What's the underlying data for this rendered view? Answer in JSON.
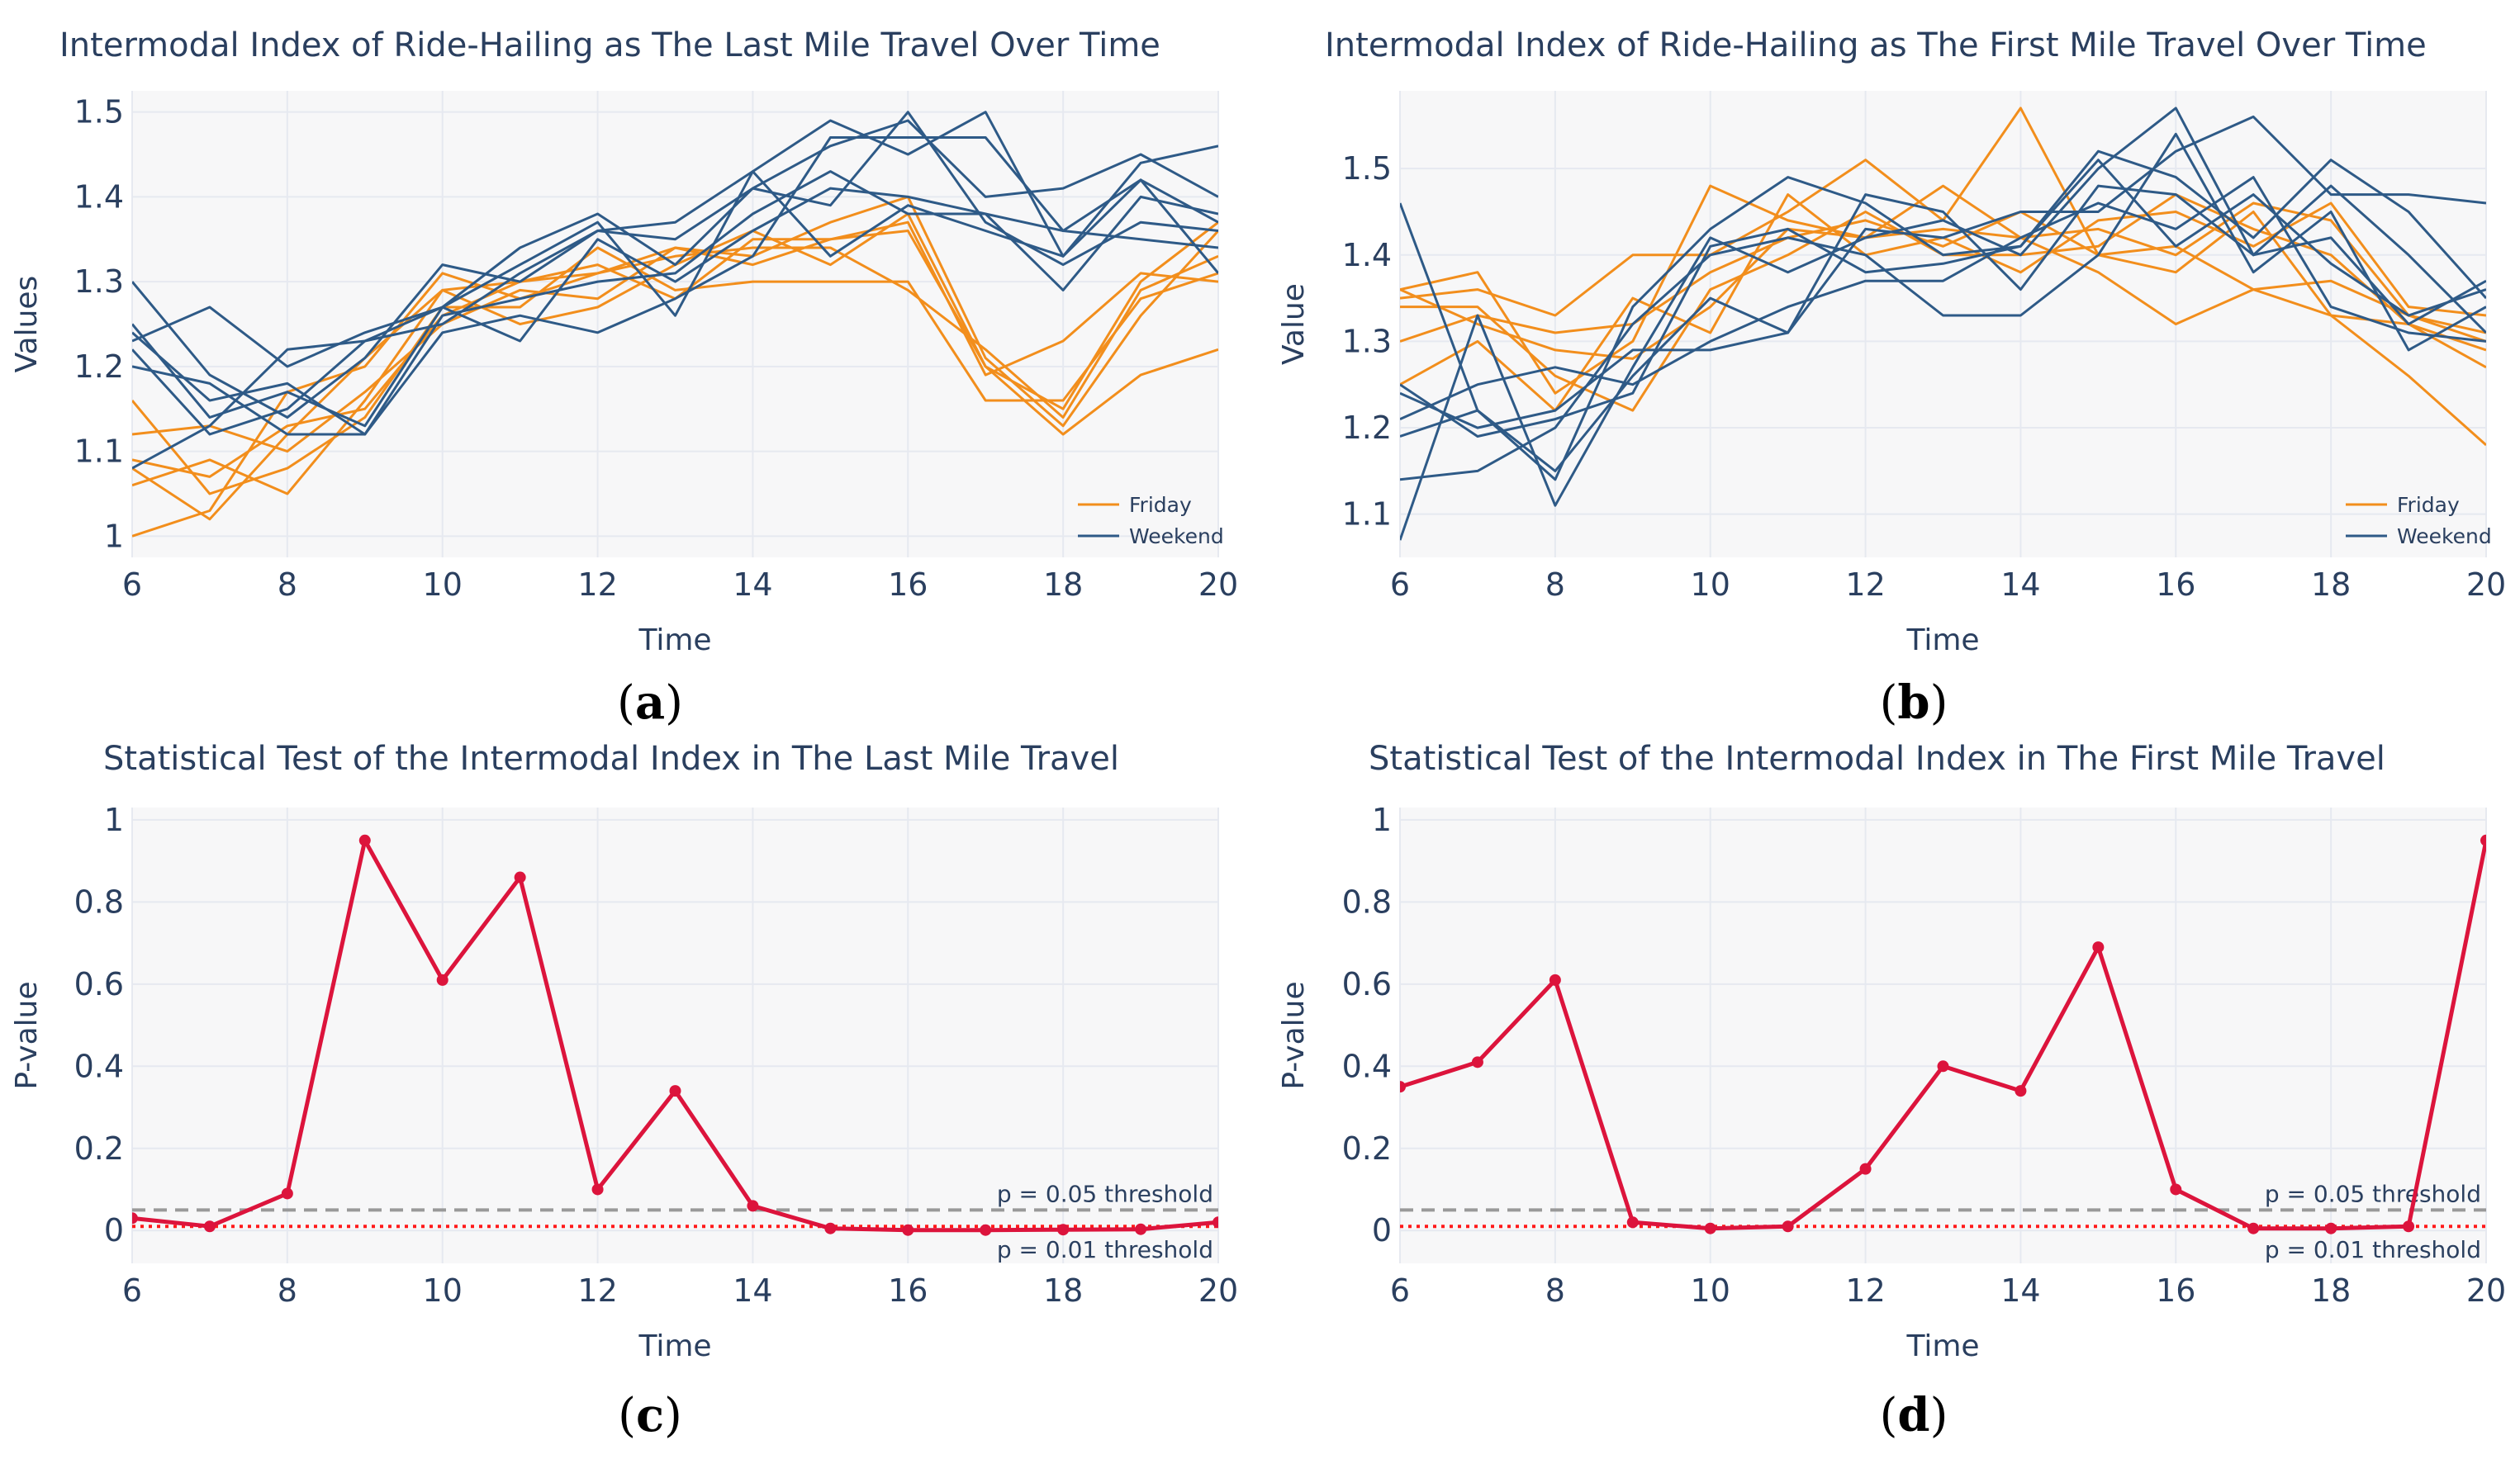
{
  "colors": {
    "friday": "#f28e1c",
    "weekend": "#2e5a87",
    "pvalue": "#dc143c",
    "threshold_05": "#999999",
    "threshold_01": "#ff1a1a",
    "plot_bg": "#f7f7f8",
    "grid": "#e6e9f0",
    "text": "#2a3f5f"
  },
  "chart_data": [
    {
      "type": "line",
      "panel": "a",
      "caption_open": "(",
      "caption_letter": "a",
      "caption_close": ")",
      "title": "Intermodal Index of Ride-Hailing as The Last Mile Travel Over Time",
      "xlabel": "Time",
      "ylabel": "Values",
      "xlim": [
        6,
        20
      ],
      "ylim": [
        0.975,
        1.525
      ],
      "xticks": [
        6,
        8,
        10,
        12,
        14,
        16,
        18,
        20
      ],
      "yticks": [
        1,
        1.1,
        1.2,
        1.3,
        1.4,
        1.5
      ],
      "ytick_labels": [
        "1",
        "1.1",
        "1.2",
        "1.3",
        "1.4",
        "1.5"
      ],
      "x": [
        6,
        7,
        8,
        9,
        10,
        11,
        12,
        13,
        14,
        15,
        16,
        17,
        18,
        19,
        20
      ],
      "legend": [
        {
          "label": "Friday",
          "color_key": "friday"
        },
        {
          "label": "Weekend",
          "color_key": "weekend"
        }
      ],
      "legend_position": "bottom-right",
      "series": [
        {
          "name": "Friday",
          "group": "friday",
          "values": [
            1.0,
            1.03,
            1.17,
            1.2,
            1.31,
            1.28,
            1.31,
            1.34,
            1.33,
            1.37,
            1.4,
            1.21,
            1.13,
            1.26,
            1.36
          ]
        },
        {
          "name": "Friday",
          "group": "friday",
          "values": [
            1.08,
            1.02,
            1.12,
            1.21,
            1.29,
            1.3,
            1.32,
            1.28,
            1.35,
            1.35,
            1.36,
            1.2,
            1.15,
            1.3,
            1.37
          ]
        },
        {
          "name": "Friday",
          "group": "friday",
          "values": [
            1.16,
            1.05,
            1.08,
            1.14,
            1.27,
            1.27,
            1.34,
            1.29,
            1.3,
            1.3,
            1.3,
            1.16,
            1.16,
            1.28,
            1.31
          ]
        },
        {
          "name": "Friday",
          "group": "friday",
          "values": [
            1.12,
            1.13,
            1.1,
            1.17,
            1.25,
            1.29,
            1.28,
            1.34,
            1.32,
            1.35,
            1.37,
            1.19,
            1.23,
            1.31,
            1.3
          ]
        },
        {
          "name": "Friday",
          "group": "friday",
          "values": [
            1.06,
            1.09,
            1.05,
            1.16,
            1.29,
            1.25,
            1.27,
            1.32,
            1.36,
            1.32,
            1.38,
            1.2,
            1.12,
            1.19,
            1.22
          ]
        },
        {
          "name": "Friday",
          "group": "friday",
          "values": [
            1.09,
            1.07,
            1.13,
            1.15,
            1.26,
            1.3,
            1.31,
            1.33,
            1.34,
            1.34,
            1.29,
            1.22,
            1.14,
            1.29,
            1.33
          ]
        },
        {
          "name": "Weekend",
          "group": "weekend",
          "values": [
            1.3,
            1.19,
            1.14,
            1.21,
            1.32,
            1.3,
            1.36,
            1.37,
            1.43,
            1.49,
            1.45,
            1.5,
            1.33,
            1.44,
            1.46
          ]
        },
        {
          "name": "Weekend",
          "group": "weekend",
          "values": [
            1.23,
            1.27,
            1.2,
            1.24,
            1.27,
            1.34,
            1.38,
            1.32,
            1.41,
            1.46,
            1.49,
            1.4,
            1.41,
            1.45,
            1.4
          ]
        },
        {
          "name": "Weekend",
          "group": "weekend",
          "values": [
            1.25,
            1.14,
            1.17,
            1.13,
            1.27,
            1.23,
            1.35,
            1.3,
            1.36,
            1.41,
            1.4,
            1.38,
            1.29,
            1.4,
            1.38
          ]
        },
        {
          "name": "Weekend",
          "group": "weekend",
          "values": [
            1.08,
            1.13,
            1.22,
            1.23,
            1.25,
            1.31,
            1.36,
            1.35,
            1.41,
            1.39,
            1.5,
            1.37,
            1.32,
            1.37,
            1.36
          ]
        },
        {
          "name": "Weekend",
          "group": "weekend",
          "values": [
            1.24,
            1.16,
            1.18,
            1.12,
            1.24,
            1.26,
            1.24,
            1.28,
            1.33,
            1.47,
            1.47,
            1.47,
            1.36,
            1.42,
            1.37
          ]
        },
        {
          "name": "Weekend",
          "group": "weekend",
          "values": [
            1.2,
            1.18,
            1.12,
            1.12,
            1.26,
            1.28,
            1.3,
            1.31,
            1.38,
            1.43,
            1.38,
            1.38,
            1.36,
            1.35,
            1.34
          ]
        },
        {
          "name": "Weekend",
          "group": "weekend",
          "values": [
            1.22,
            1.12,
            1.15,
            1.23,
            1.27,
            1.32,
            1.37,
            1.26,
            1.43,
            1.33,
            1.39,
            1.36,
            1.33,
            1.42,
            1.31
          ]
        }
      ]
    },
    {
      "type": "line",
      "panel": "b",
      "caption_open": "(",
      "caption_letter": "b",
      "caption_close": ")",
      "title": "Intermodal Index of Ride-Hailing as The First Mile Travel Over Time",
      "xlabel": "Time",
      "ylabel": "Value",
      "xlim": [
        6,
        20
      ],
      "ylim": [
        1.05,
        1.59
      ],
      "xticks": [
        6,
        8,
        10,
        12,
        14,
        16,
        18,
        20
      ],
      "yticks": [
        1.1,
        1.2,
        1.3,
        1.4,
        1.5
      ],
      "ytick_labels": [
        "1.1",
        "1.2",
        "1.3",
        "1.4",
        "1.5"
      ],
      "x": [
        6,
        7,
        8,
        9,
        10,
        11,
        12,
        13,
        14,
        15,
        16,
        17,
        18,
        19,
        20
      ],
      "legend": [
        {
          "label": "Friday",
          "color_key": "friday"
        },
        {
          "label": "Weekend",
          "color_key": "weekend"
        }
      ],
      "legend_position": "bottom-right",
      "series": [
        {
          "name": "Friday",
          "group": "friday",
          "values": [
            1.35,
            1.36,
            1.33,
            1.4,
            1.4,
            1.45,
            1.51,
            1.44,
            1.57,
            1.4,
            1.41,
            1.36,
            1.37,
            1.33,
            1.3
          ]
        },
        {
          "name": "Friday",
          "group": "friday",
          "values": [
            1.36,
            1.38,
            1.24,
            1.3,
            1.48,
            1.44,
            1.42,
            1.48,
            1.42,
            1.38,
            1.32,
            1.36,
            1.33,
            1.26,
            1.18
          ]
        },
        {
          "name": "Friday",
          "group": "friday",
          "values": [
            1.3,
            1.33,
            1.31,
            1.32,
            1.38,
            1.42,
            1.44,
            1.41,
            1.45,
            1.4,
            1.38,
            1.45,
            1.33,
            1.32,
            1.27
          ]
        },
        {
          "name": "Friday",
          "group": "friday",
          "values": [
            1.25,
            1.3,
            1.22,
            1.35,
            1.31,
            1.47,
            1.4,
            1.42,
            1.38,
            1.44,
            1.45,
            1.41,
            1.46,
            1.34,
            1.33
          ]
        },
        {
          "name": "Friday",
          "group": "friday",
          "values": [
            1.34,
            1.34,
            1.26,
            1.22,
            1.36,
            1.4,
            1.45,
            1.4,
            1.4,
            1.41,
            1.47,
            1.43,
            1.4,
            1.32,
            1.29
          ]
        },
        {
          "name": "Friday",
          "group": "friday",
          "values": [
            1.36,
            1.32,
            1.29,
            1.28,
            1.34,
            1.43,
            1.42,
            1.43,
            1.42,
            1.43,
            1.4,
            1.46,
            1.44,
            1.33,
            1.31
          ]
        },
        {
          "name": "Weekend",
          "group": "weekend",
          "values": [
            1.46,
            1.22,
            1.14,
            1.34,
            1.43,
            1.49,
            1.46,
            1.4,
            1.41,
            1.52,
            1.49,
            1.42,
            1.51,
            1.45,
            1.35
          ]
        },
        {
          "name": "Weekend",
          "group": "weekend",
          "values": [
            1.07,
            1.33,
            1.11,
            1.27,
            1.42,
            1.38,
            1.42,
            1.44,
            1.4,
            1.5,
            1.57,
            1.4,
            1.42,
            1.32,
            1.37
          ]
        },
        {
          "name": "Weekend",
          "group": "weekend",
          "values": [
            1.24,
            1.2,
            1.22,
            1.29,
            1.29,
            1.31,
            1.43,
            1.42,
            1.45,
            1.45,
            1.52,
            1.56,
            1.47,
            1.47,
            1.46
          ]
        },
        {
          "name": "Weekend",
          "group": "weekend",
          "values": [
            1.14,
            1.15,
            1.2,
            1.32,
            1.4,
            1.42,
            1.4,
            1.33,
            1.33,
            1.4,
            1.54,
            1.38,
            1.45,
            1.29,
            1.34
          ]
        },
        {
          "name": "Weekend",
          "group": "weekend",
          "values": [
            1.21,
            1.25,
            1.27,
            1.25,
            1.3,
            1.34,
            1.37,
            1.37,
            1.42,
            1.46,
            1.43,
            1.49,
            1.34,
            1.31,
            1.3
          ]
        },
        {
          "name": "Weekend",
          "group": "weekend",
          "values": [
            1.19,
            1.22,
            1.15,
            1.26,
            1.35,
            1.31,
            1.47,
            1.45,
            1.36,
            1.48,
            1.47,
            1.4,
            1.48,
            1.4,
            1.31
          ]
        },
        {
          "name": "Weekend",
          "group": "weekend",
          "values": [
            1.25,
            1.19,
            1.21,
            1.24,
            1.41,
            1.43,
            1.38,
            1.39,
            1.41,
            1.51,
            1.41,
            1.47,
            1.39,
            1.33,
            1.36
          ]
        }
      ]
    },
    {
      "type": "line",
      "panel": "c",
      "caption_open": "(",
      "caption_letter": "c",
      "caption_close": ")",
      "title": "Statistical Test of the Intermodal Index in The Last Mile Travel",
      "xlabel": "Time",
      "ylabel": "P-value",
      "xlim": [
        6,
        20
      ],
      "ylim": [
        -0.08,
        1.03
      ],
      "xticks": [
        6,
        8,
        10,
        12,
        14,
        16,
        18,
        20
      ],
      "yticks": [
        0,
        0.2,
        0.4,
        0.6,
        0.8,
        1
      ],
      "ytick_labels": [
        "0",
        "0.2",
        "0.4",
        "0.6",
        "0.8",
        "1"
      ],
      "x": [
        6,
        7,
        8,
        9,
        10,
        11,
        12,
        13,
        14,
        15,
        16,
        17,
        18,
        19,
        20
      ],
      "series": [
        {
          "name": "P-value",
          "group": "pvalue",
          "markers": true,
          "values": [
            0.03,
            0.01,
            0.09,
            0.95,
            0.61,
            0.86,
            0.1,
            0.34,
            0.06,
            0.005,
            0.001,
            0.001,
            0.002,
            0.003,
            0.02
          ]
        }
      ],
      "thresholds": [
        {
          "value": 0.05,
          "label": "p = 0.05 threshold",
          "style": "dashed",
          "color_key": "threshold_05",
          "label_position": "above-right"
        },
        {
          "value": 0.01,
          "label": "p = 0.01 threshold",
          "style": "dotted",
          "color_key": "threshold_01",
          "label_position": "below-right"
        }
      ]
    },
    {
      "type": "line",
      "panel": "d",
      "caption_open": "(",
      "caption_letter": "d",
      "caption_close": ")",
      "title": "Statistical Test of the Intermodal Index in The First Mile Travel",
      "xlabel": "Time",
      "ylabel": "P-value",
      "xlim": [
        6,
        20
      ],
      "ylim": [
        -0.08,
        1.03
      ],
      "xticks": [
        6,
        8,
        10,
        12,
        14,
        16,
        18,
        20
      ],
      "yticks": [
        0,
        0.2,
        0.4,
        0.6,
        0.8,
        1
      ],
      "ytick_labels": [
        "0",
        "0.2",
        "0.4",
        "0.6",
        "0.8",
        "1"
      ],
      "x": [
        6,
        7,
        8,
        9,
        10,
        11,
        12,
        13,
        14,
        15,
        16,
        17,
        18,
        19,
        20
      ],
      "series": [
        {
          "name": "P-value",
          "group": "pvalue",
          "markers": true,
          "values": [
            0.35,
            0.41,
            0.61,
            0.02,
            0.005,
            0.01,
            0.15,
            0.4,
            0.34,
            0.69,
            0.1,
            0.005,
            0.005,
            0.01,
            0.95
          ]
        }
      ],
      "thresholds": [
        {
          "value": 0.05,
          "label": "p = 0.05 threshold",
          "style": "dashed",
          "color_key": "threshold_05",
          "label_position": "above-right"
        },
        {
          "value": 0.01,
          "label": "p = 0.01 threshold",
          "style": "dotted",
          "color_key": "threshold_01",
          "label_position": "below-right"
        }
      ]
    }
  ]
}
